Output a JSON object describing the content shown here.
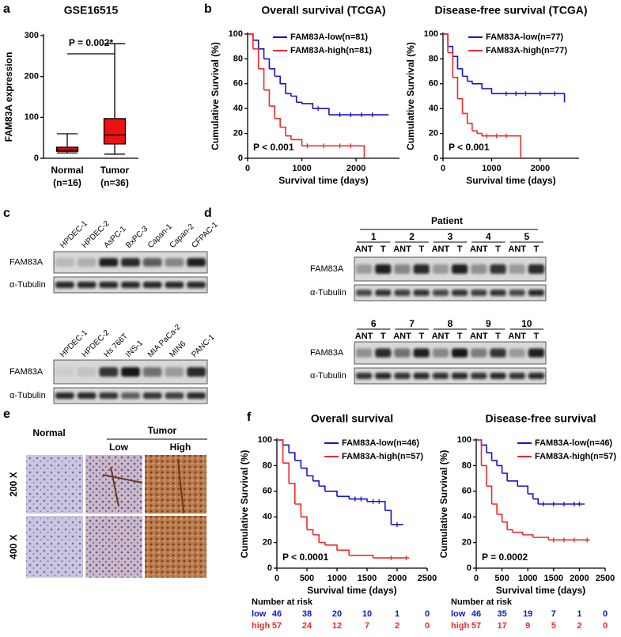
{
  "chart_data": [
    {
      "type": "box",
      "panel": "a",
      "title": "GSE16515",
      "ylabel": "FAM83A expression",
      "categories": [
        "Normal",
        "Tumor"
      ],
      "category_sublabels": [
        "(n=16)",
        "(n=36)"
      ],
      "color": "#ee1111",
      "whisker_low": [
        13,
        10
      ],
      "q1": [
        17,
        35
      ],
      "median": [
        21,
        57
      ],
      "q3": [
        27,
        97
      ],
      "whisker_high": [
        60,
        280
      ],
      "ylim": [
        0,
        300
      ],
      "yticks": [
        0,
        100,
        200,
        300
      ],
      "annotation": "P = 0.002*"
    },
    {
      "type": "km",
      "panel": "b",
      "title": "Overall survival (TCGA)",
      "xlabel": "Survival time (days)",
      "ylabel": "Cumulative Survival (%)",
      "xlim": [
        0,
        2800
      ],
      "xticks": [
        0,
        1000,
        2000
      ],
      "ylim": [
        0,
        100
      ],
      "yticks": [
        0,
        20,
        40,
        60,
        80,
        100
      ],
      "legend": "upper right",
      "annotation": "P < 0.001",
      "series": [
        {
          "name": "FAM83A-low(n=81)",
          "color": "#1515cc",
          "x": [
            0,
            100,
            200,
            300,
            400,
            500,
            600,
            700,
            800,
            900,
            1000,
            1200,
            1500,
            2600
          ],
          "values": [
            100,
            95,
            88,
            80,
            72,
            66,
            60,
            52,
            50,
            45,
            44,
            40,
            35,
            35
          ],
          "censored": [
            1300,
            1700,
            1900,
            2100,
            2300
          ]
        },
        {
          "name": "FAM83A-high(n=81)",
          "color": "#ee2b2b",
          "x": [
            0,
            100,
            200,
            300,
            400,
            500,
            600,
            700,
            800,
            1000,
            2150
          ],
          "values": [
            100,
            88,
            72,
            55,
            42,
            32,
            25,
            18,
            15,
            10,
            0
          ],
          "censored": [
            1100,
            1400,
            1700,
            1900
          ]
        }
      ]
    },
    {
      "type": "km",
      "title": "Disease-free survival (TCGA)",
      "xlabel": "Survival time (days)",
      "ylabel": "Cumulative Survival (%)",
      "xlim": [
        0,
        2800
      ],
      "xticks": [
        0,
        1000,
        2000
      ],
      "ylim": [
        0,
        100
      ],
      "yticks": [
        0,
        20,
        40,
        60,
        80,
        100
      ],
      "legend": "upper right",
      "annotation": "P < 0.001",
      "series": [
        {
          "name": "FAM83A-low(n=77)",
          "color": "#1515cc",
          "x": [
            0,
            100,
            200,
            300,
            400,
            500,
            600,
            800,
            1000,
            2500
          ],
          "values": [
            100,
            90,
            82,
            72,
            66,
            62,
            60,
            56,
            52,
            45
          ],
          "censored": [
            1300,
            1500,
            1700,
            2000,
            2300
          ]
        },
        {
          "name": "FAM83A-high(n=77)",
          "color": "#ee2b2b",
          "x": [
            0,
            100,
            200,
            300,
            400,
            500,
            600,
            700,
            800,
            1600
          ],
          "values": [
            100,
            85,
            65,
            48,
            36,
            28,
            22,
            20,
            18,
            0
          ],
          "censored": [
            900,
            1100,
            1300
          ]
        }
      ]
    },
    {
      "type": "km",
      "panel": "f",
      "title": "Overall survival",
      "xlabel": "Survival time (days)",
      "ylabel": "Cumulative Survival (%)",
      "xlim": [
        0,
        2500
      ],
      "xticks": [
        0,
        500,
        1000,
        1500,
        2000,
        2500
      ],
      "ylim": [
        0,
        100
      ],
      "yticks": [
        0,
        20,
        40,
        60,
        80,
        100
      ],
      "legend": "upper right",
      "annotation": "P < 0.0001",
      "series": [
        {
          "name": "FAM83A-low(n=46)",
          "color": "#1515cc",
          "x": [
            0,
            100,
            200,
            300,
            400,
            500,
            600,
            700,
            800,
            1000,
            1200,
            1500,
            1800,
            1900,
            2100
          ],
          "values": [
            100,
            96,
            90,
            84,
            78,
            72,
            68,
            64,
            60,
            56,
            54,
            52,
            45,
            34,
            34
          ],
          "censored": [
            1300,
            1400,
            1600,
            1700,
            2000
          ]
        },
        {
          "name": "FAM83A-high(n=57)",
          "color": "#ee2b2b",
          "x": [
            0,
            100,
            200,
            300,
            400,
            500,
            600,
            700,
            800,
            1000,
            1200,
            1600,
            2200
          ],
          "values": [
            100,
            82,
            66,
            50,
            40,
            30,
            26,
            20,
            18,
            14,
            10,
            8,
            8
          ],
          "censored": [
            1900,
            2150
          ]
        }
      ],
      "risk_table": {
        "title": "Number at risk",
        "rows": [
          {
            "name": "low",
            "color": "#1515cc",
            "values": [
              46,
              38,
              20,
              10,
              1,
              0
            ]
          },
          {
            "name": "high",
            "color": "#ee2b2b",
            "values": [
              57,
              24,
              12,
              7,
              2,
              0
            ]
          }
        ]
      }
    },
    {
      "type": "km",
      "title": "Disease-free survival",
      "xlabel": "Survival time (days)",
      "ylabel": "Cumulative Survival (%)",
      "xlim": [
        0,
        2500
      ],
      "xticks": [
        0,
        500,
        1000,
        1500,
        2000,
        2500
      ],
      "ylim": [
        0,
        100
      ],
      "yticks": [
        0,
        20,
        40,
        60,
        80,
        100
      ],
      "legend": "upper right",
      "annotation": "P = 0.0002",
      "series": [
        {
          "name": "FAM83A-low(n=46)",
          "color": "#1515cc",
          "x": [
            0,
            100,
            200,
            300,
            400,
            500,
            600,
            800,
            1000,
            1100,
            1200,
            2100
          ],
          "values": [
            100,
            96,
            90,
            84,
            80,
            74,
            68,
            64,
            58,
            54,
            50,
            50
          ],
          "censored": [
            1300,
            1500,
            1700,
            1900,
            2000
          ]
        },
        {
          "name": "FAM83A-high(n=57)",
          "color": "#ee2b2b",
          "x": [
            0,
            100,
            200,
            300,
            400,
            500,
            600,
            700,
            900,
            1100,
            1400,
            2200
          ],
          "values": [
            100,
            80,
            64,
            50,
            42,
            36,
            30,
            28,
            26,
            24,
            22,
            22
          ],
          "censored": [
            1500,
            1700,
            1900,
            2150
          ]
        }
      ],
      "risk_table": {
        "title": "Number at risk",
        "rows": [
          {
            "name": "low",
            "color": "#1515cc",
            "values": [
              46,
              35,
              19,
              7,
              1,
              0
            ]
          },
          {
            "name": "high",
            "color": "#ee2b2b",
            "values": [
              57,
              17,
              9,
              5,
              2,
              0
            ]
          }
        ]
      }
    }
  ],
  "blot_c": {
    "panel": "c",
    "groups": [
      {
        "lanes": [
          "HPDEC-1",
          "HPDEC-2",
          "AsPC-1",
          "BxPC-3",
          "Capan-1",
          "Capan-2",
          "CFPAC-1"
        ],
        "rows": [
          "FAM83A",
          "α-Tubulin"
        ]
      },
      {
        "lanes": [
          "HPDEC-1",
          "HPDEC-2",
          "Hs 766T",
          "INS-1",
          "MIA PaCa-2",
          "MIN6",
          "PANC-1"
        ],
        "rows": [
          "FAM83A",
          "α-Tubulin"
        ]
      }
    ]
  },
  "blot_d": {
    "panel": "d",
    "header": "Patient",
    "lane_labels": [
      "ANT",
      "T"
    ],
    "groups": [
      {
        "patients": [
          "1",
          "2",
          "3",
          "4",
          "5"
        ],
        "rows": [
          "FAM83A",
          "α-Tubulin"
        ]
      },
      {
        "patients": [
          "6",
          "7",
          "8",
          "9",
          "10"
        ],
        "rows": [
          "FAM83A",
          "α-Tubulin"
        ]
      }
    ]
  },
  "ihc": {
    "panel": "e",
    "normal": "Normal",
    "tumor": "Tumor",
    "tumor_columns": [
      "Low",
      "High"
    ],
    "rows": [
      "200 X",
      "400 X"
    ]
  }
}
